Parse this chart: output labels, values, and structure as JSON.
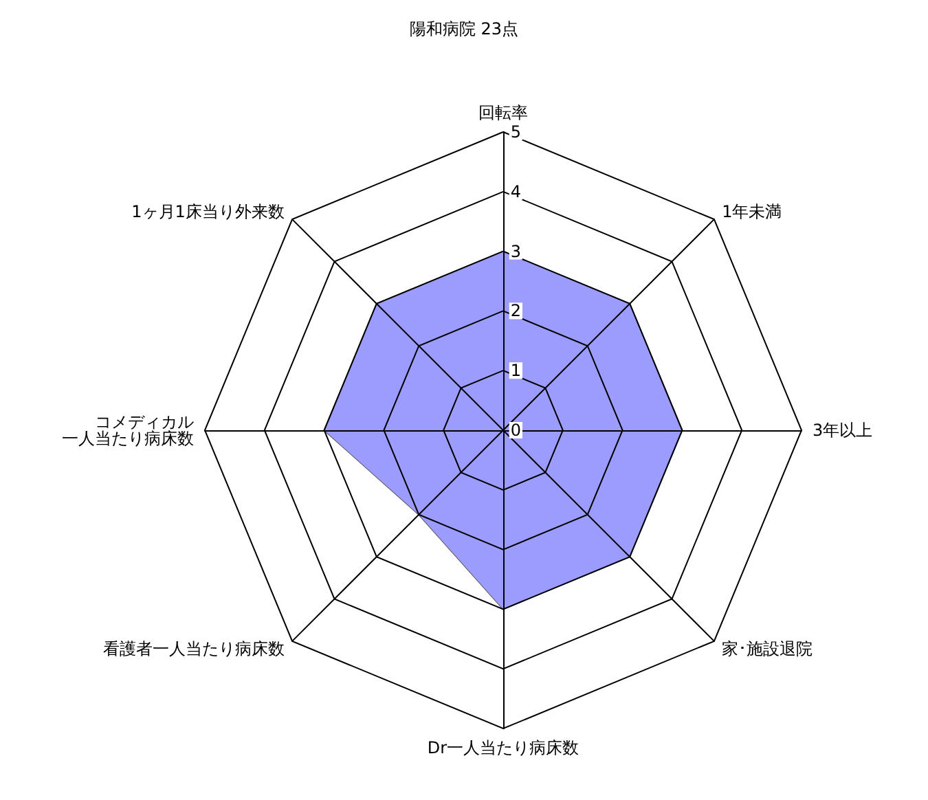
{
  "chart_data": {
    "type": "radar",
    "title": "陽和病院 23点",
    "categories": [
      "回転率",
      "1年未満",
      "3年以上",
      "家･施設退院",
      "Dr一人当たり病床数",
      "看護者一人当たり病床数",
      "コメディカル一人当たり病床数",
      "1ヶ月1床当り外来数"
    ],
    "series": [
      {
        "color": "#9c9cff",
        "values": [
          3,
          3,
          3,
          3,
          3,
          2,
          3,
          3
        ]
      }
    ],
    "ylim": [
      0,
      5
    ],
    "yticks": [
      0,
      1,
      2,
      3,
      4,
      5
    ]
  }
}
